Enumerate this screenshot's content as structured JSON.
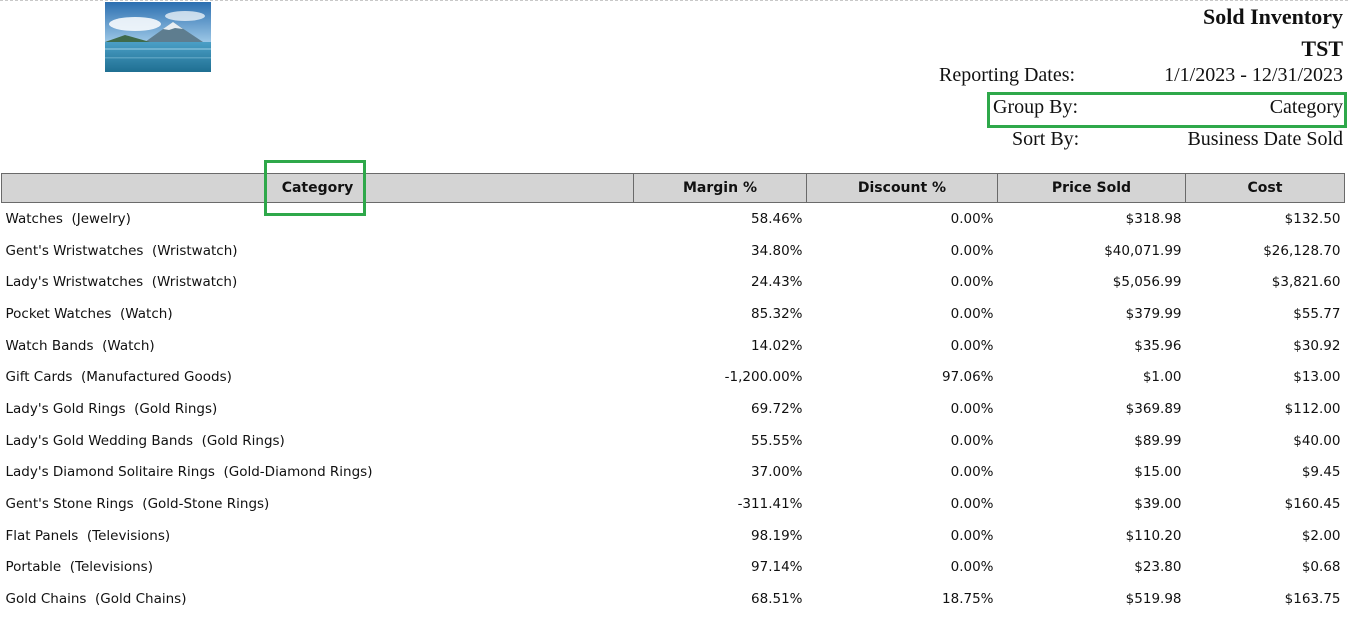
{
  "report": {
    "title": "Sold Inventory",
    "subtitle": "TST",
    "reporting_dates_label": "Reporting Dates:",
    "reporting_dates_value": "1/1/2023 - 12/31/2023",
    "group_by_label": "Group By:",
    "group_by_value": "Category",
    "sort_by_label": "Sort By:",
    "sort_by_value": "Business Date Sold"
  },
  "colors": {
    "highlight": "#2ea84a",
    "header_bg": "#d4d4d4"
  },
  "table": {
    "headers": [
      "Category",
      "Margin %",
      "Discount %",
      "Price Sold",
      "Cost"
    ],
    "rows": [
      [
        "Watches  (Jewelry)",
        "58.46%",
        "0.00%",
        "$318.98",
        "$132.50"
      ],
      [
        "Gent's Wristwatches  (Wristwatch)",
        "34.80%",
        "0.00%",
        "$40,071.99",
        "$26,128.70"
      ],
      [
        "Lady's Wristwatches  (Wristwatch)",
        "24.43%",
        "0.00%",
        "$5,056.99",
        "$3,821.60"
      ],
      [
        "Pocket Watches  (Watch)",
        "85.32%",
        "0.00%",
        "$379.99",
        "$55.77"
      ],
      [
        "Watch Bands  (Watch)",
        "14.02%",
        "0.00%",
        "$35.96",
        "$30.92"
      ],
      [
        "Gift Cards  (Manufactured Goods)",
        "-1,200.00%",
        "97.06%",
        "$1.00",
        "$13.00"
      ],
      [
        "Lady's Gold Rings  (Gold Rings)",
        "69.72%",
        "0.00%",
        "$369.89",
        "$112.00"
      ],
      [
        "Lady's Gold Wedding Bands  (Gold Rings)",
        "55.55%",
        "0.00%",
        "$89.99",
        "$40.00"
      ],
      [
        "Lady's Diamond Solitaire Rings  (Gold-Diamond Rings)",
        "37.00%",
        "0.00%",
        "$15.00",
        "$9.45"
      ],
      [
        "Gent's Stone Rings  (Gold-Stone Rings)",
        "-311.41%",
        "0.00%",
        "$39.00",
        "$160.45"
      ],
      [
        "Flat Panels  (Televisions)",
        "98.19%",
        "0.00%",
        "$110.20",
        "$2.00"
      ],
      [
        "Portable  (Televisions)",
        "97.14%",
        "0.00%",
        "$23.80",
        "$0.68"
      ],
      [
        "Gold Chains  (Gold Chains)",
        "68.51%",
        "18.75%",
        "$519.98",
        "$163.75"
      ]
    ]
  }
}
